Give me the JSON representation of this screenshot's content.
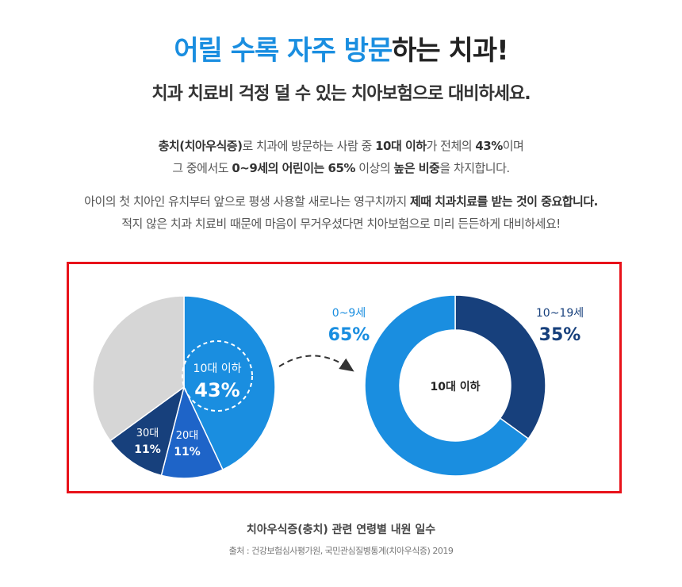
{
  "header": {
    "headline_accent": "어릴 수록 자주 방문",
    "headline_rest": "하는 치과!",
    "subheadline": "치과 치료비 걱정 덜 수 있는 치아보험으로 대비하세요."
  },
  "intro": {
    "p1_line1_bold1": "충치(치아우식증)",
    "p1_line1_text1": "로 치과에 방문하는 사람 중 ",
    "p1_line1_bold2": "10대 이하",
    "p1_line1_text2": "가 전체의 ",
    "p1_line1_bold3": "43%",
    "p1_line1_text3": "이며",
    "p1_line2_text1": "그 중에서도 ",
    "p1_line2_bold1": "0~9세의 어린이는 65%",
    "p1_line2_text2": " 이상의 ",
    "p1_line2_bold2": "높은 비중",
    "p1_line2_text3": "을 차지합니다.",
    "p2_line1_text": "아이의 첫 치아인 유치부터 앞으로 평생 사용할 새로나는 영구치까지 ",
    "p2_line1_bold": "제때 치과치료를 받는 것이 중요합니다.",
    "p2_line2_text": "적지 않은 치과 치료비 때문에 마음이 무거우셨다면 치아보험으로 미리 든든하게 대비하세요!"
  },
  "chart_data": [
    {
      "type": "pie",
      "slices": [
        {
          "label": "10대 이하",
          "value": 43,
          "value_label": "43%",
          "color": "#1a8ee0"
        },
        {
          "label": "20대",
          "value": 11,
          "value_label": "11%",
          "color": "#1e64c8"
        },
        {
          "label": "30대",
          "value": 11,
          "value_label": "11%",
          "color": "#17407c"
        },
        {
          "label": "",
          "value": 35,
          "value_label": "",
          "color": "#d6d6d6"
        }
      ]
    },
    {
      "type": "pie",
      "center_label": "10대 이하",
      "slices": [
        {
          "label": "10~19세",
          "value": 35,
          "value_label": "35%",
          "color": "#17407c"
        },
        {
          "label": "0~9세",
          "value": 65,
          "value_label": "65%",
          "color": "#1a8ee0"
        }
      ]
    }
  ],
  "footer": {
    "caption": "치아우식증(충치) 관련 연령별 내원 일수",
    "source": "출처 : 건강보험심사평가원, 국민관심질병통계(치아우식증) 2019"
  },
  "colors": {
    "accent": "#1a8ee0",
    "dark_navy": "#17407c",
    "mid_blue": "#1e64c8",
    "frame": "#e8121a"
  }
}
